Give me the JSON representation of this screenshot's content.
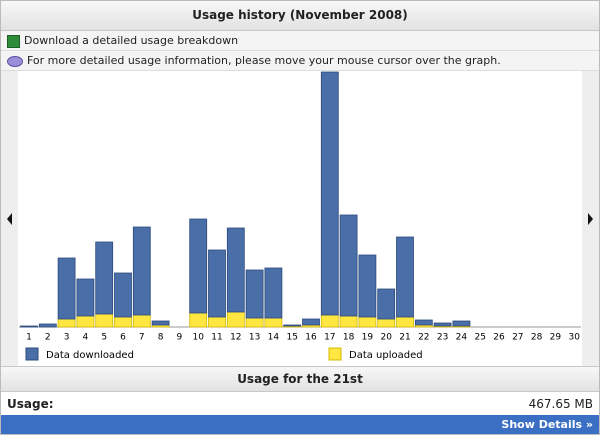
{
  "header": {
    "title": "Usage history (November 2008)"
  },
  "links": {
    "download": "Download a detailed usage breakdown",
    "info": "For more detailed usage information, please move your mouse cursor over the graph."
  },
  "chart_data": {
    "type": "stacked-bar",
    "categories": [
      "1",
      "2",
      "3",
      "4",
      "5",
      "6",
      "7",
      "8",
      "9",
      "10",
      "11",
      "12",
      "13",
      "14",
      "15",
      "16",
      "17",
      "18",
      "19",
      "20",
      "21",
      "22",
      "23",
      "24",
      "25",
      "26",
      "27",
      "28",
      "29",
      "30"
    ],
    "series": [
      {
        "name": "Data downloaded",
        "color": "#4a6fa8",
        "values": [
          1,
          3,
          61,
          37,
          72,
          44,
          88,
          4,
          0,
          94,
          67,
          84,
          48,
          50,
          1,
          6,
          243,
          101,
          62,
          30,
          80,
          5,
          3,
          5,
          0,
          0,
          0,
          0,
          0,
          0
        ]
      },
      {
        "name": "Data uploaded",
        "color": "#ffe640",
        "values": [
          0,
          0,
          8,
          11,
          13,
          10,
          12,
          2,
          0,
          14,
          10,
          15,
          9,
          9,
          1,
          2,
          12,
          11,
          10,
          8,
          10,
          2,
          1,
          1,
          0,
          0,
          0,
          0,
          0,
          0
        ]
      }
    ],
    "ylim": [
      0,
      255
    ]
  },
  "summary": {
    "title": "Usage for the 21st",
    "label": "Usage:",
    "value": "467.65 MB"
  },
  "footer": {
    "button": "Show Details »"
  }
}
